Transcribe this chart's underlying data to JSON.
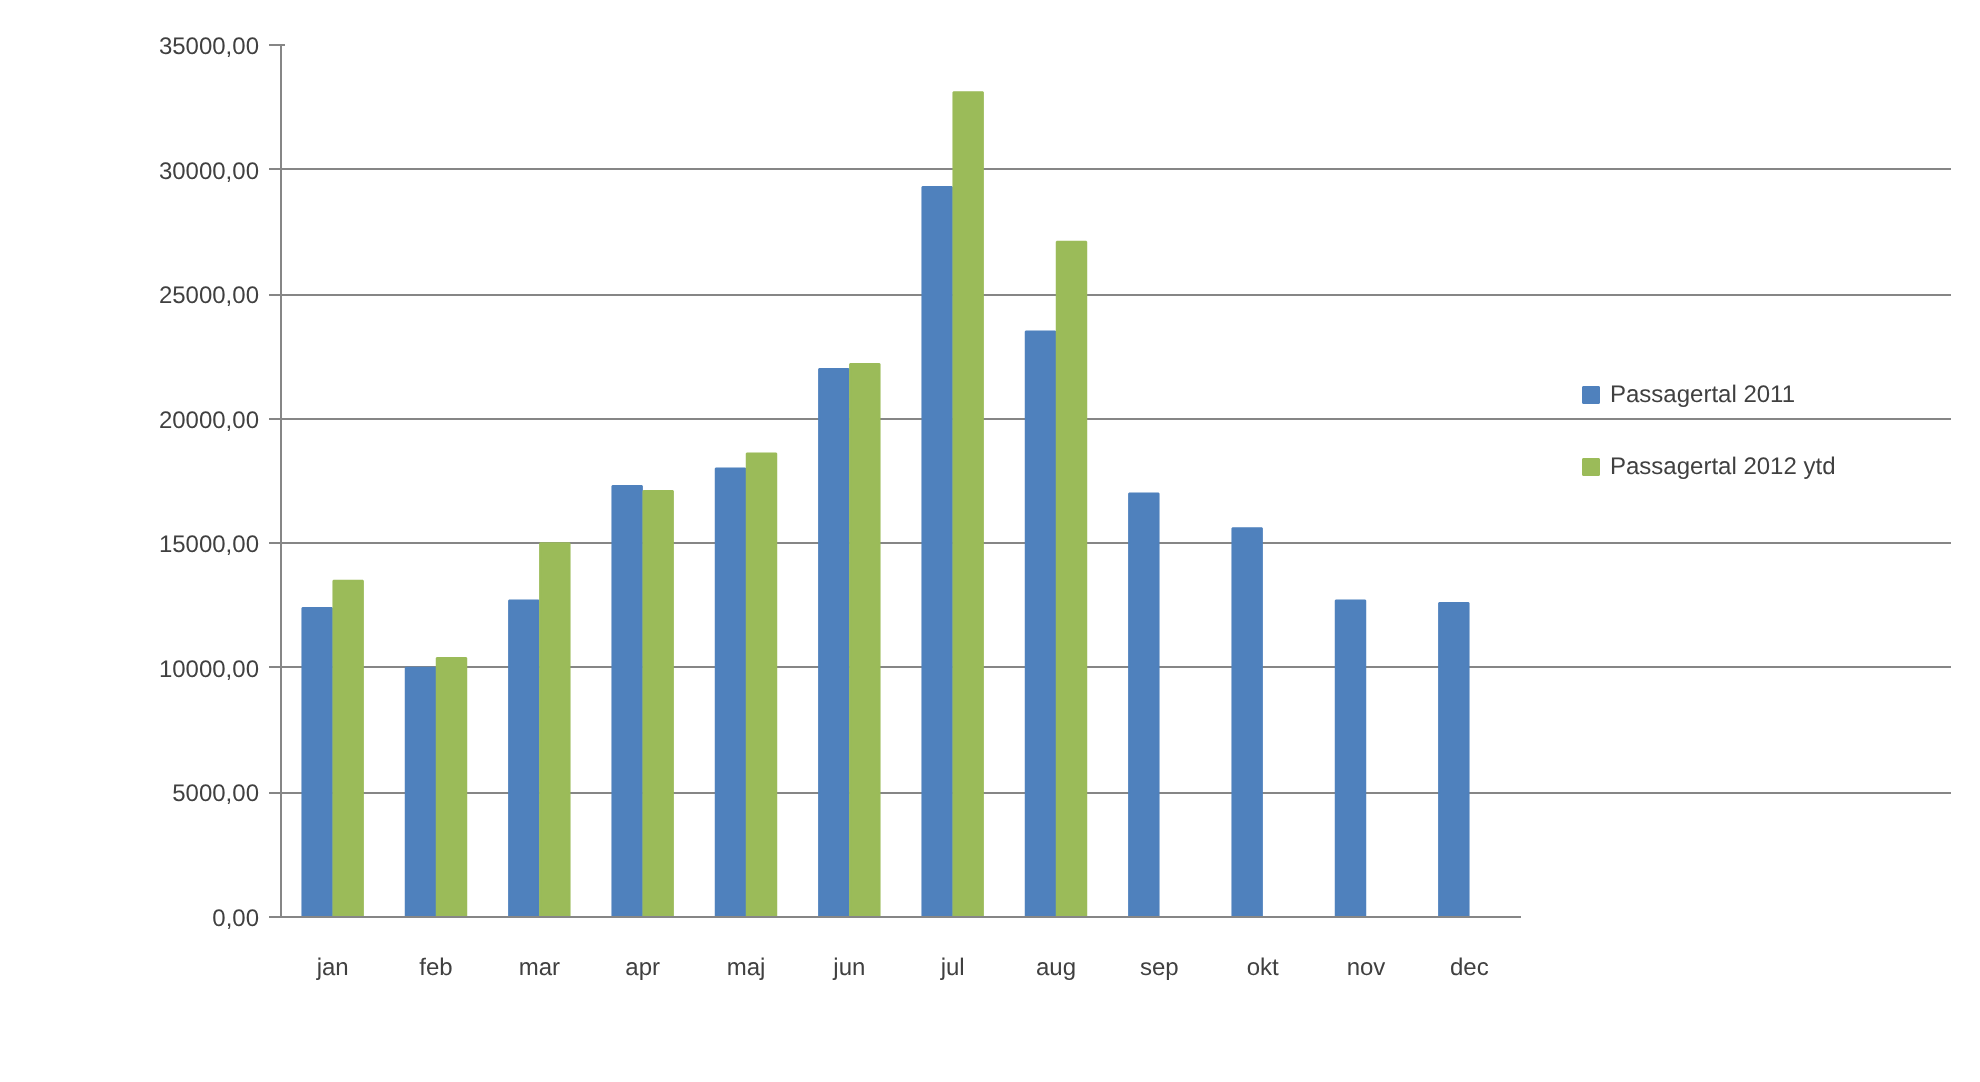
{
  "chart_data": {
    "type": "bar",
    "categories": [
      "jan",
      "feb",
      "mar",
      "apr",
      "maj",
      "jun",
      "jul",
      "aug",
      "sep",
      "okt",
      "nov",
      "dec"
    ],
    "series": [
      {
        "name": "Passagertal 2011",
        "color": "#4f81bd",
        "values": [
          12400,
          10000,
          12700,
          17300,
          18000,
          22000,
          29300,
          23500,
          17000,
          15600,
          12700,
          12600
        ]
      },
      {
        "name": "Passagertal 2012 ytd",
        "color": "#9bbb59",
        "values": [
          13500,
          10400,
          15000,
          17100,
          18600,
          22200,
          33100,
          27100,
          null,
          null,
          null,
          null
        ]
      }
    ],
    "ylim": [
      0,
      35000
    ],
    "yticks": [
      {
        "value": 0,
        "label": "0,00"
      },
      {
        "value": 5000,
        "label": "5000,00"
      },
      {
        "value": 10000,
        "label": "10000,00"
      },
      {
        "value": 15000,
        "label": "15000,00"
      },
      {
        "value": 20000,
        "label": "20000,00"
      },
      {
        "value": 25000,
        "label": "25000,00"
      },
      {
        "value": 30000,
        "label": "30000,00"
      },
      {
        "value": 35000,
        "label": "35000,00"
      }
    ],
    "grid": "y",
    "legend": "right"
  }
}
